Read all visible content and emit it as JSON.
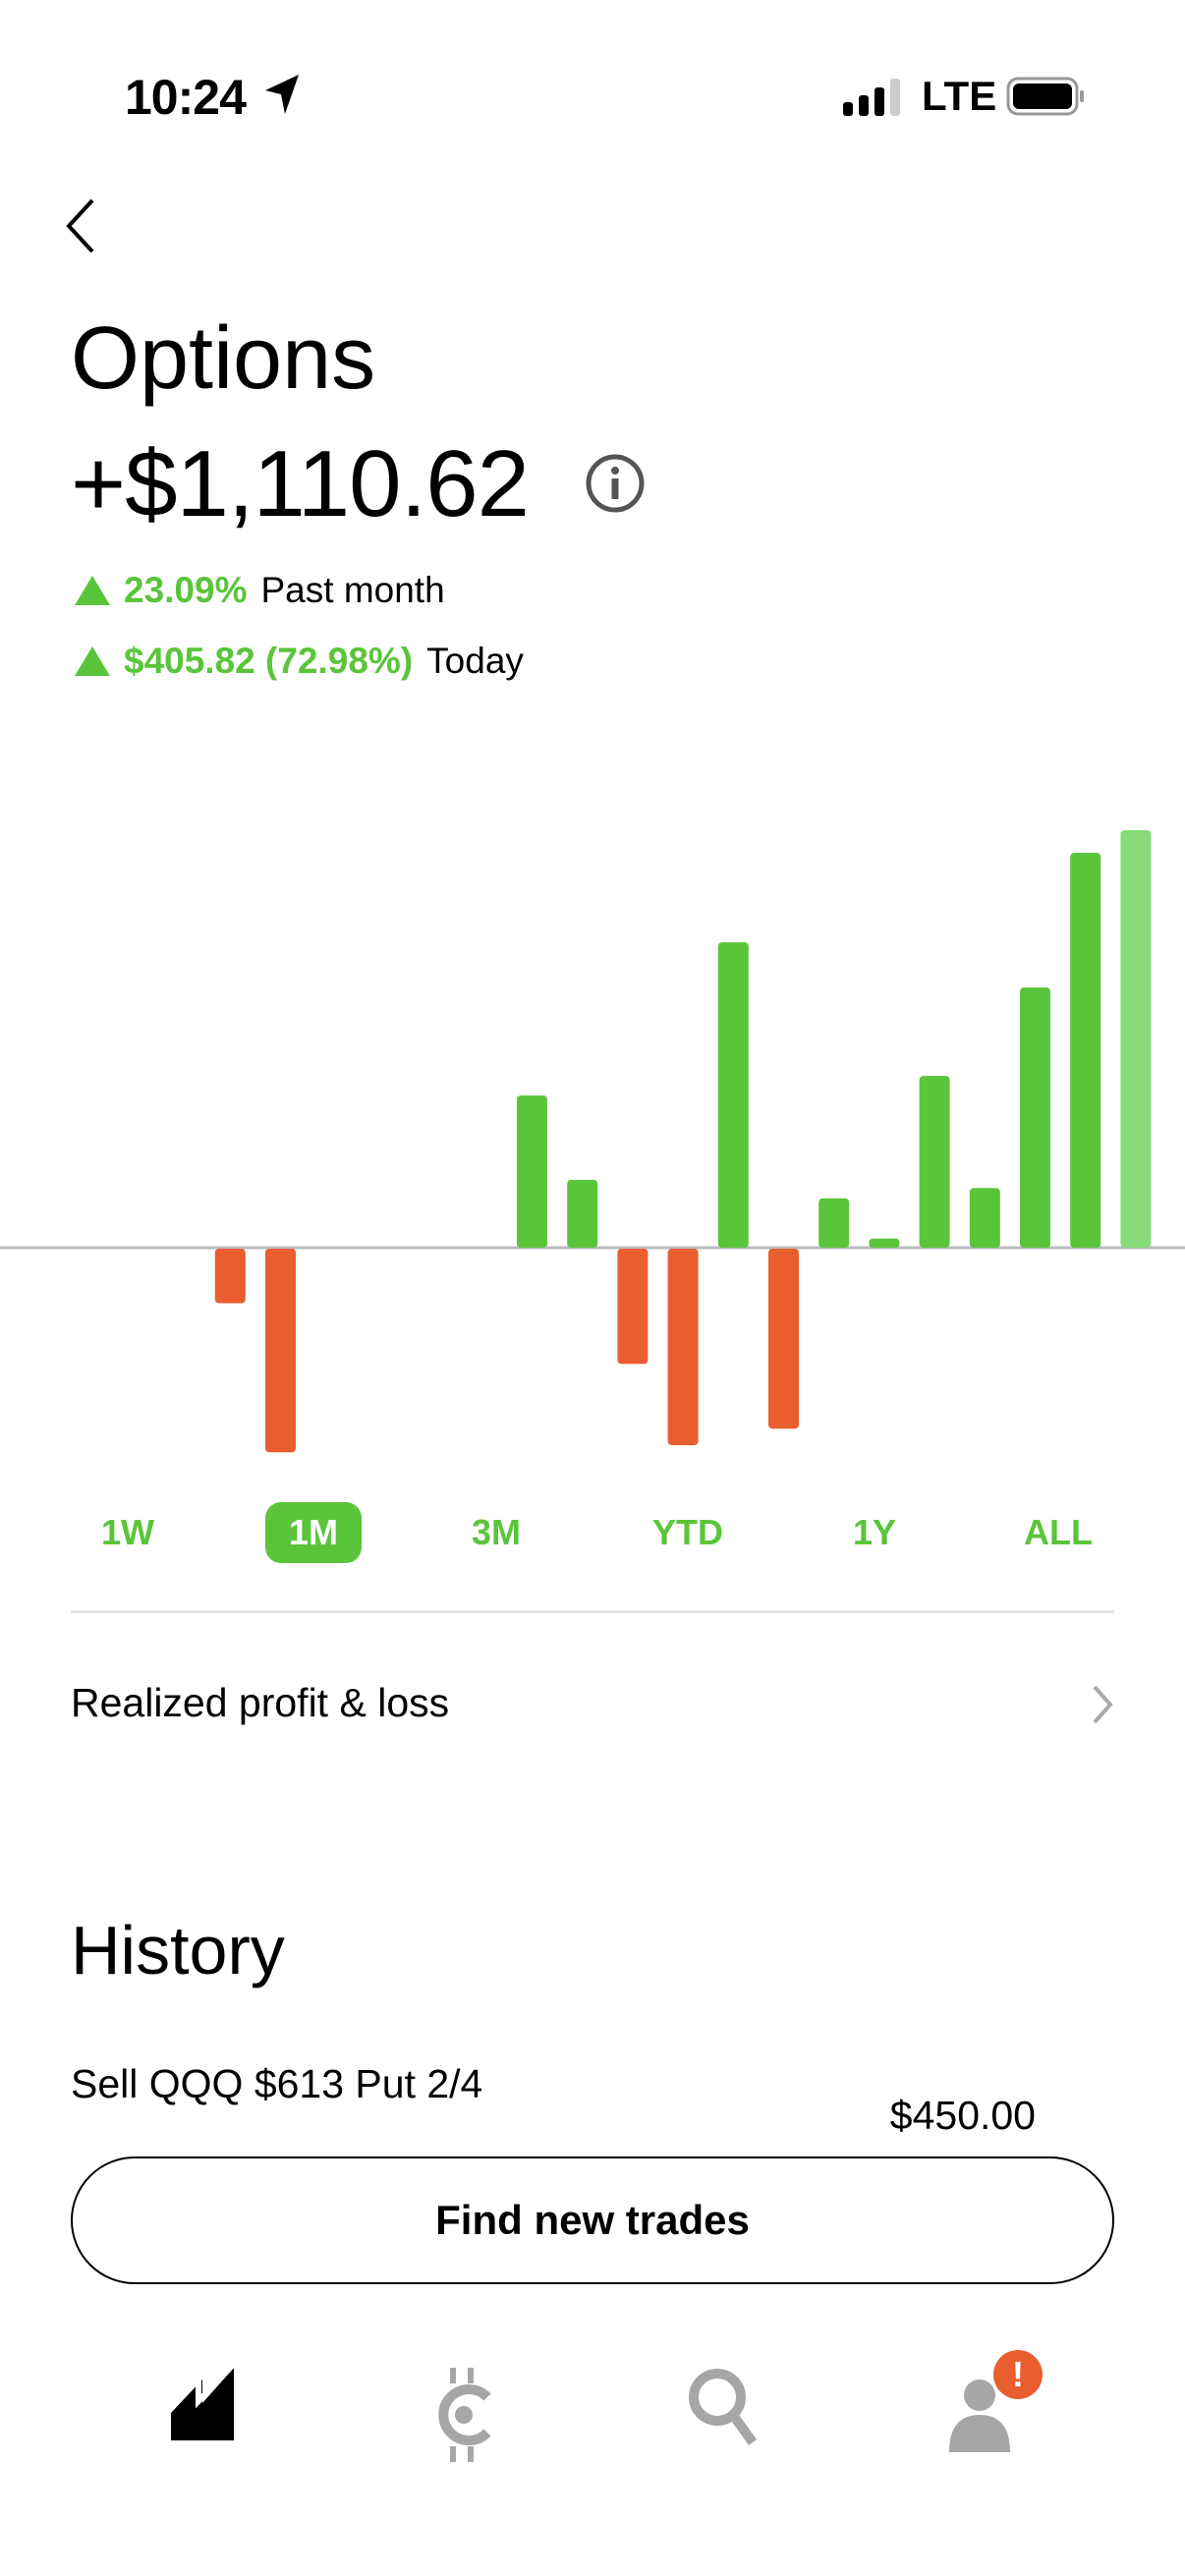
{
  "status_bar": {
    "time": "10:24",
    "network": "LTE"
  },
  "header": {
    "title": "Options",
    "total": "+$1,110.62"
  },
  "stats": [
    {
      "value": "23.09%",
      "label": "Past month"
    },
    {
      "value": "$405.82 (72.98%)",
      "label": "Today"
    }
  ],
  "colors": {
    "positive": "#5AC53B",
    "today": "#88DB78",
    "negative": "#E95E2E",
    "baseline": "#B8BCC2"
  },
  "chart_data": {
    "type": "bar",
    "title": "",
    "xlabel": "",
    "ylabel": "",
    "x": [
      1,
      2,
      3,
      4,
      5,
      6,
      7,
      8,
      9,
      10,
      11,
      12,
      13,
      14,
      15,
      16,
      17,
      18,
      19,
      20,
      21,
      22,
      23
    ],
    "values": [
      0,
      0,
      0,
      0,
      -53,
      -198,
      0,
      0,
      0,
      0,
      148,
      66,
      -112,
      -191,
      297,
      -175,
      48,
      9,
      167,
      58,
      253,
      384,
      406
    ],
    "highlight_last": true,
    "ylim": [
      -200,
      410
    ],
    "grid": false,
    "legend": "none"
  },
  "ranges": [
    {
      "label": "1W",
      "active": false
    },
    {
      "label": "1M",
      "active": true
    },
    {
      "label": "3M",
      "active": false
    },
    {
      "label": "YTD",
      "active": false
    },
    {
      "label": "1Y",
      "active": false
    },
    {
      "label": "ALL",
      "active": false
    }
  ],
  "realized": {
    "label": "Realized profit & loss"
  },
  "history": {
    "title": "History",
    "items": [
      {
        "name": "Sell QQQ $613 Put 2/4",
        "amount": "$450.00"
      }
    ]
  },
  "cta": {
    "label": "Find new trades"
  },
  "nav": {
    "items": [
      {
        "icon": "chart-icon",
        "active": true
      },
      {
        "icon": "crypto-icon",
        "active": false
      },
      {
        "icon": "search-icon",
        "active": false
      },
      {
        "icon": "account-icon",
        "active": false
      }
    ],
    "badge": "!"
  }
}
